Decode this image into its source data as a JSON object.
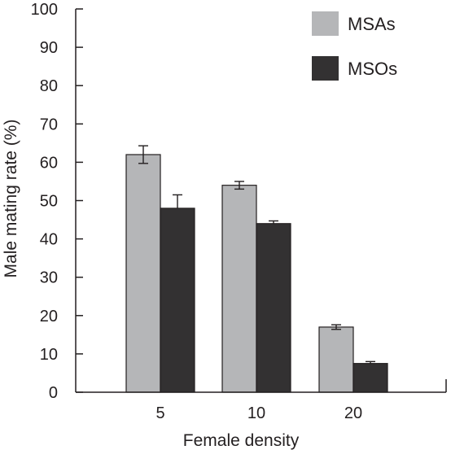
{
  "chart_data": {
    "type": "bar",
    "title": "",
    "xlabel": "Female density",
    "ylabel": "Male mating rate (%)",
    "ylim": [
      0,
      100
    ],
    "yticks": [
      0,
      10,
      20,
      30,
      40,
      50,
      60,
      70,
      80,
      90,
      100
    ],
    "categories": [
      "5",
      "10",
      "20"
    ],
    "series": [
      {
        "name": "MSAs",
        "color": "#b5b6b8",
        "values": [
          62,
          54,
          17
        ],
        "errors": [
          2.3,
          1.0,
          0.6
        ]
      },
      {
        "name": "MSOs",
        "color": "#333132",
        "values": [
          48,
          44,
          7.5
        ],
        "errors": [
          3.5,
          0.7,
          0.5
        ]
      }
    ],
    "legend_position": "top-right",
    "grid": false
  }
}
